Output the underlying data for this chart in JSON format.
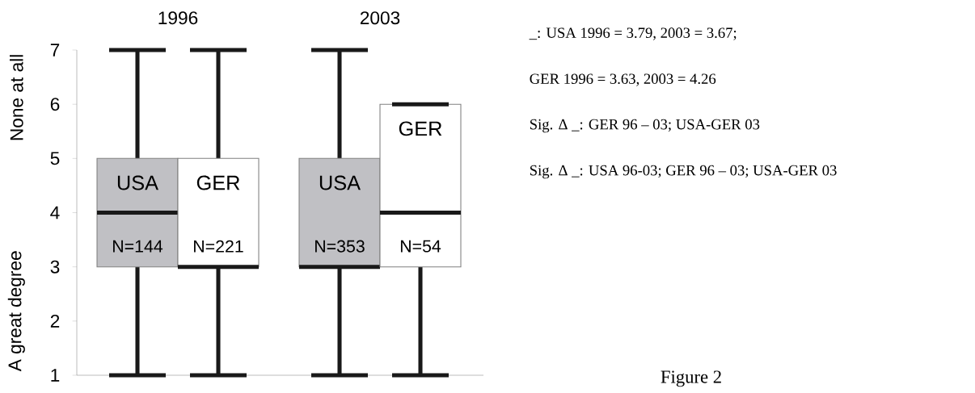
{
  "chart_data": {
    "type": "box",
    "categories": [
      "1996",
      "2003"
    ],
    "series": [
      {
        "name": "USA",
        "color": "#c0c0c4",
        "value_labels": [
          "N=144",
          "N=353"
        ],
        "boxes": [
          {
            "low": 1,
            "q1": 3,
            "median": 4,
            "q3": 5,
            "high": 7
          },
          {
            "low": 1,
            "q1": 3,
            "median": 3,
            "q3": 5,
            "high": 7
          }
        ]
      },
      {
        "name": "GER",
        "color": "#ffffff",
        "value_labels": [
          "N=221",
          "N=54"
        ],
        "boxes": [
          {
            "low": 1,
            "q1": 3,
            "median": 3,
            "q3": 5,
            "high": 7
          },
          {
            "low": 1,
            "q1": 3,
            "median": 4,
            "q3": 6,
            "high": 6
          }
        ]
      }
    ],
    "ylim": [
      1,
      7
    ],
    "yticks": [
      1,
      2,
      3,
      4,
      5,
      6,
      7
    ],
    "annotations": [
      "None at all",
      "A great degree",
      "_:  USA 1996 = 3.79,  2003 = 3.67;",
      "GER 1996 = 3.63,  2003 = 4.26",
      "Sig. Δ _: GER 96 – 03; USA-GER 03",
      "Sig. Δ _: USA 96-03; GER 96 – 03; USA-GER 03",
      "Figure 2"
    ]
  }
}
